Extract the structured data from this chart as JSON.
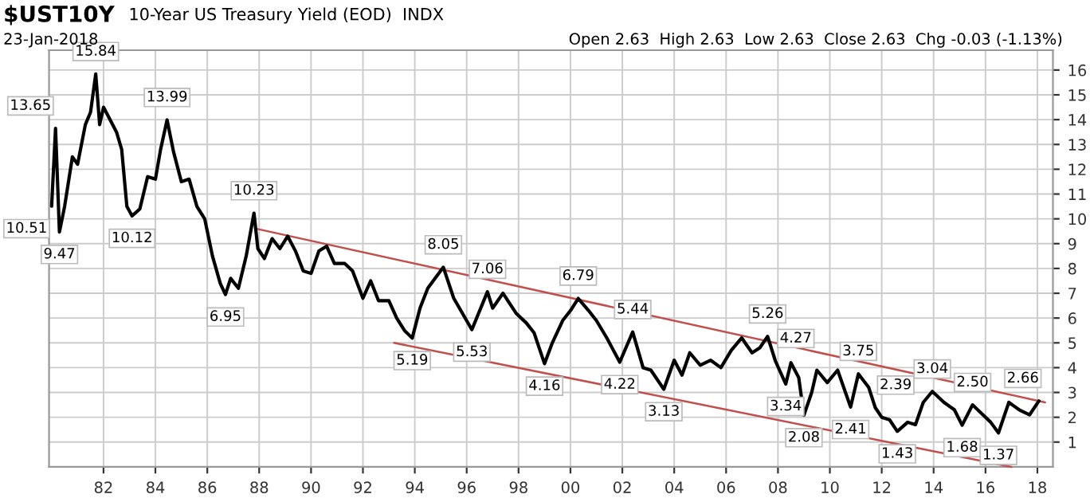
{
  "chart_data": {
    "type": "line",
    "title": "$UST10Y",
    "subtitle": "10-Year US Treasury Yield (EOD)  INDX",
    "annotations": [
      "23-Jan-2018",
      "Open 2.63  High 2.63  Low 2.63  Close 2.63  Chg -0.03 (-1.13%)",
      {
        "text": "10.51",
        "x": 1980.0,
        "y": 10.51
      },
      {
        "text": "13.65",
        "x": 1980.15,
        "y": 13.65
      },
      {
        "text": "9.47",
        "x": 1980.3,
        "y": 9.47
      },
      {
        "text": "15.84",
        "x": 1981.7,
        "y": 15.84
      },
      {
        "text": "10.12",
        "x": 1983.1,
        "y": 10.12
      },
      {
        "text": "13.99",
        "x": 1984.45,
        "y": 13.99
      },
      {
        "text": "6.95",
        "x": 1986.7,
        "y": 6.95
      },
      {
        "text": "10.23",
        "x": 1987.8,
        "y": 10.23
      },
      {
        "text": "5.19",
        "x": 1993.9,
        "y": 5.19
      },
      {
        "text": "8.05",
        "x": 1995.1,
        "y": 8.05
      },
      {
        "text": "5.53",
        "x": 1996.2,
        "y": 5.53
      },
      {
        "text": "7.06",
        "x": 1996.8,
        "y": 7.06
      },
      {
        "text": "4.16",
        "x": 1999.0,
        "y": 4.16
      },
      {
        "text": "6.79",
        "x": 2000.3,
        "y": 6.79
      },
      {
        "text": "4.22",
        "x": 2001.9,
        "y": 4.22
      },
      {
        "text": "5.44",
        "x": 2002.4,
        "y": 5.44
      },
      {
        "text": "3.13",
        "x": 2003.6,
        "y": 3.13
      },
      {
        "text": "5.26",
        "x": 2007.6,
        "y": 5.26
      },
      {
        "text": "4.27",
        "x": 2007.9,
        "y": 4.27
      },
      {
        "text": "3.34",
        "x": 2008.3,
        "y": 3.34
      },
      {
        "text": "2.08",
        "x": 2009.0,
        "y": 2.08
      },
      {
        "text": "2.41",
        "x": 2010.8,
        "y": 2.41
      },
      {
        "text": "3.75",
        "x": 2011.1,
        "y": 3.75
      },
      {
        "text": "2.39",
        "x": 2011.75,
        "y": 2.39
      },
      {
        "text": "1.43",
        "x": 2012.6,
        "y": 1.43
      },
      {
        "text": "3.04",
        "x": 2013.95,
        "y": 3.04
      },
      {
        "text": "1.68",
        "x": 2015.1,
        "y": 1.68
      },
      {
        "text": "2.50",
        "x": 2015.5,
        "y": 2.5
      },
      {
        "text": "1.37",
        "x": 2016.5,
        "y": 1.37
      },
      {
        "text": "2.66",
        "x": 2018.06,
        "y": 2.66
      }
    ],
    "series": [
      {
        "color": "#000000",
        "x": [
          1980.0,
          1980.15,
          1980.3,
          1980.5,
          1980.8,
          1981.0,
          1981.3,
          1981.5,
          1981.7,
          1981.85,
          1982.0,
          1982.3,
          1982.5,
          1982.7,
          1982.9,
          1983.1,
          1983.4,
          1983.7,
          1984.0,
          1984.2,
          1984.45,
          1984.7,
          1985.0,
          1985.3,
          1985.6,
          1985.9,
          1986.2,
          1986.5,
          1986.7,
          1986.9,
          1987.2,
          1987.5,
          1987.8,
          1987.95,
          1988.2,
          1988.5,
          1988.8,
          1989.1,
          1989.4,
          1989.7,
          1990.0,
          1990.3,
          1990.6,
          1990.9,
          1991.3,
          1991.6,
          1992.0,
          1992.3,
          1992.6,
          1993.0,
          1993.3,
          1993.6,
          1993.9,
          1994.2,
          1994.5,
          1995.1,
          1995.5,
          1996.2,
          1996.8,
          1997.0,
          1997.4,
          1997.9,
          1998.3,
          1998.6,
          1999.0,
          1999.3,
          1999.7,
          2000.0,
          2000.3,
          2000.7,
          2001.0,
          2001.4,
          2001.9,
          2002.4,
          2002.8,
          2003.1,
          2003.6,
          2004.0,
          2004.3,
          2004.6,
          2005.0,
          2005.4,
          2005.8,
          2006.2,
          2006.6,
          2007.0,
          2007.3,
          2007.6,
          2007.9,
          2008.3,
          2008.5,
          2008.8,
          2009.0,
          2009.3,
          2009.5,
          2009.9,
          2010.3,
          2010.8,
          2011.1,
          2011.5,
          2011.75,
          2012.0,
          2012.3,
          2012.6,
          2013.0,
          2013.3,
          2013.6,
          2013.95,
          2014.4,
          2014.8,
          2015.1,
          2015.5,
          2015.9,
          2016.2,
          2016.5,
          2016.9,
          2017.3,
          2017.7,
          2018.06
        ],
        "values": [
          10.51,
          13.65,
          9.47,
          10.5,
          12.5,
          12.2,
          13.8,
          14.3,
          15.84,
          13.8,
          14.5,
          13.9,
          13.5,
          12.8,
          10.5,
          10.12,
          10.4,
          11.7,
          11.6,
          12.8,
          13.99,
          12.7,
          11.5,
          11.6,
          10.5,
          10.0,
          8.5,
          7.4,
          6.95,
          7.6,
          7.2,
          8.5,
          10.23,
          8.8,
          8.4,
          9.2,
          8.8,
          9.3,
          8.7,
          7.9,
          7.8,
          8.7,
          8.9,
          8.2,
          8.2,
          7.9,
          6.8,
          7.5,
          6.7,
          6.7,
          6.0,
          5.5,
          5.19,
          6.4,
          7.2,
          8.05,
          6.8,
          5.53,
          7.06,
          6.4,
          7.0,
          6.2,
          5.8,
          5.4,
          4.16,
          5.0,
          5.9,
          6.3,
          6.79,
          6.3,
          5.9,
          5.2,
          4.22,
          5.44,
          4.0,
          3.9,
          3.13,
          4.3,
          3.7,
          4.6,
          4.1,
          4.3,
          4.0,
          4.7,
          5.2,
          4.6,
          4.8,
          5.26,
          4.27,
          3.34,
          4.2,
          3.6,
          2.08,
          3.0,
          3.9,
          3.4,
          3.9,
          2.41,
          3.75,
          3.2,
          2.39,
          2.0,
          1.9,
          1.43,
          1.8,
          1.7,
          2.6,
          3.04,
          2.6,
          2.3,
          1.68,
          2.5,
          2.1,
          1.8,
          1.37,
          2.6,
          2.3,
          2.1,
          2.66
        ]
      },
      {
        "color": "#c0504d",
        "x": [
          1987.9,
          2018.3
        ],
        "values": [
          9.6,
          2.6
        ]
      },
      {
        "color": "#c0504d",
        "x": [
          1993.2,
          2017.0
        ],
        "values": [
          5.0,
          0.0
        ]
      }
    ],
    "xlim": [
      1979.9,
      2018.6
    ],
    "ylim": [
      0,
      16.8
    ],
    "xticks": [
      {
        "value": 1982,
        "label": "82"
      },
      {
        "value": 1984,
        "label": "84"
      },
      {
        "value": 1986,
        "label": "86"
      },
      {
        "value": 1988,
        "label": "88"
      },
      {
        "value": 1990,
        "label": "90"
      },
      {
        "value": 1992,
        "label": "92"
      },
      {
        "value": 1994,
        "label": "94"
      },
      {
        "value": 1996,
        "label": "96"
      },
      {
        "value": 1998,
        "label": "98"
      },
      {
        "value": 2000,
        "label": "00"
      },
      {
        "value": 2002,
        "label": "02"
      },
      {
        "value": 2004,
        "label": "04"
      },
      {
        "value": 2006,
        "label": "06"
      },
      {
        "value": 2008,
        "label": "08"
      },
      {
        "value": 2010,
        "label": "10"
      },
      {
        "value": 2012,
        "label": "12"
      },
      {
        "value": 2014,
        "label": "14"
      },
      {
        "value": 2016,
        "label": "16"
      },
      {
        "value": 2018,
        "label": "18"
      }
    ],
    "yticks": [
      1,
      2,
      3,
      4,
      5,
      6,
      7,
      8,
      9,
      10,
      11,
      12,
      13,
      14,
      15,
      16
    ],
    "grid": true,
    "legend": false,
    "marker": "none",
    "line_style": "solid"
  }
}
